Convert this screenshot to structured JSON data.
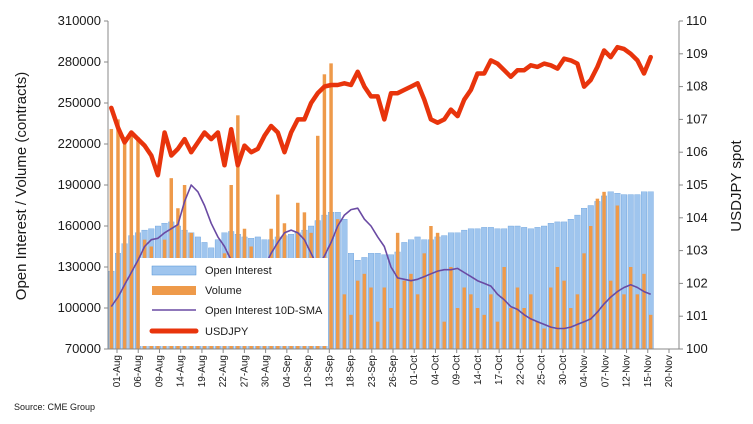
{
  "chart_data": {
    "type": "bar",
    "source": "Source: CME Group",
    "ylabel_left": "Open Interest / Volume (contracts)",
    "ylabel_right": "USDJPY spot",
    "ylim_left": [
      70000,
      310000
    ],
    "yticks_left": [
      "70000",
      "100000",
      "130000",
      "160000",
      "190000",
      "220000",
      "250000",
      "280000",
      "310000"
    ],
    "ylim_right": [
      100,
      110
    ],
    "yticks_right": [
      "100",
      "101",
      "102",
      "103",
      "104",
      "105",
      "106",
      "107",
      "108",
      "109",
      "110"
    ],
    "date_ticks": [
      "01-Aug",
      "06-Aug",
      "09-Aug",
      "14-Aug",
      "19-Aug",
      "22-Aug",
      "27-Aug",
      "30-Aug",
      "04-Sep",
      "10-Sep",
      "13-Sep",
      "18-Sep",
      "23-Sep",
      "26-Sep",
      "01-Oct",
      "04-Oct",
      "09-Oct",
      "14-Oct",
      "17-Oct",
      "22-Oct",
      "25-Oct",
      "30-Oct",
      "04-Nov",
      "07-Nov",
      "12-Nov",
      "15-Nov",
      "20-Nov"
    ],
    "colors": {
      "open_interest_fill": "#9fc5ee",
      "open_interest_stroke": "#4f8fd6",
      "volume": "#ee9a4a",
      "sma": "#6a4aa3",
      "usdjpy": "#e8340c"
    },
    "legend": [
      {
        "key": "open_interest",
        "label": "Open Interest"
      },
      {
        "key": "volume",
        "label": "Volume"
      },
      {
        "key": "sma",
        "label": "Open Interest 10D-SMA"
      },
      {
        "key": "usdjpy",
        "label": "USDJPY"
      }
    ],
    "series": [
      {
        "name": "Open Interest",
        "type": "bar",
        "axis": "left",
        "values": [
          127000,
          140000,
          147000,
          153000,
          155000,
          157000,
          158000,
          160000,
          162000,
          163000,
          160000,
          157000,
          155000,
          152000,
          148000,
          144000,
          150000,
          155000,
          156000,
          154000,
          152000,
          151000,
          152000,
          150000,
          150000,
          152000,
          153000,
          154000,
          155000,
          157000,
          160000,
          164000,
          168000,
          170000,
          170000,
          165000,
          140000,
          135000,
          137000,
          140000,
          140000,
          139000,
          139000,
          141000,
          148000,
          150000,
          152000,
          150000,
          150000,
          152000,
          153000,
          155000,
          155000,
          157000,
          158000,
          158000,
          159000,
          159000,
          158000,
          158000,
          160000,
          160000,
          159000,
          158000,
          159000,
          160000,
          162000,
          163000,
          163000,
          165000,
          168000,
          173000,
          175000,
          178000,
          182000,
          185000,
          184000,
          183000,
          183000,
          183000,
          185000,
          185000
        ]
      },
      {
        "name": "Volume",
        "type": "bar",
        "axis": "left",
        "values": [
          231000,
          238000,
          225000,
          226000,
          225000,
          150000,
          145000,
          120000,
          150000,
          195000,
          173000,
          190000,
          155000,
          130000,
          100000,
          100000,
          120000,
          140000,
          190000,
          241000,
          158000,
          145000,
          120000,
          100000,
          158000,
          183000,
          162000,
          120000,
          177000,
          170000,
          155000,
          226000,
          271000,
          279000,
          165000,
          110000,
          95000,
          120000,
          125000,
          115000,
          90000,
          115000,
          100000,
          155000,
          120000,
          125000,
          110000,
          140000,
          160000,
          155000,
          90000,
          130000,
          100000,
          115000,
          110000,
          100000,
          95000,
          110000,
          90000,
          130000,
          100000,
          115000,
          100000,
          110000,
          90000,
          85000,
          115000,
          130000,
          120000,
          100000,
          110000,
          140000,
          160000,
          180000,
          185000,
          120000,
          175000,
          110000,
          130000,
          110000,
          125000,
          95000
        ]
      },
      {
        "name": "Open Interest 10D-SMA",
        "type": "line",
        "axis": "left",
        "values": [
          101000,
          108000,
          117000,
          126000,
          135000,
          145000,
          150000,
          151000,
          155000,
          158000,
          161000,
          178000,
          190000,
          185000,
          175000,
          162000,
          152000,
          145000,
          135000,
          130000,
          128000,
          127000,
          126000,
          130000,
          140000,
          148000,
          155000,
          157000,
          155000,
          150000,
          140000,
          130000,
          138000,
          148000,
          160000,
          168000,
          172000,
          173000,
          165000,
          160000,
          152000,
          145000,
          130000,
          122000,
          121000,
          120000,
          121000,
          123000,
          125000,
          127000,
          128000,
          128000,
          129000,
          126000,
          123000,
          120000,
          118000,
          116000,
          110000,
          106000,
          101000,
          99000,
          95000,
          92000,
          90000,
          88000,
          86000,
          85000,
          85000,
          86000,
          88000,
          90000,
          92000,
          97000,
          103000,
          108000,
          112000,
          115000,
          117000,
          115000,
          112000,
          110000
        ]
      },
      {
        "name": "USDJPY",
        "type": "line",
        "axis": "right",
        "values": [
          107.35,
          106.75,
          106.3,
          106.6,
          106.4,
          106.2,
          105.9,
          105.3,
          106.6,
          105.9,
          106.1,
          106.4,
          106.0,
          106.3,
          106.6,
          106.4,
          106.6,
          105.6,
          106.7,
          105.6,
          106.2,
          106.0,
          106.1,
          106.5,
          106.8,
          106.6,
          106.0,
          106.6,
          107.0,
          107.0,
          107.5,
          107.8,
          108.0,
          108.05,
          108.05,
          108.1,
          108.05,
          108.45,
          108.0,
          107.7,
          107.7,
          107.0,
          107.8,
          107.8,
          107.9,
          108.0,
          108.1,
          107.6,
          107.0,
          106.9,
          107.0,
          107.3,
          107.1,
          107.6,
          107.9,
          108.4,
          108.4,
          108.8,
          108.7,
          108.5,
          108.3,
          108.5,
          108.5,
          108.65,
          108.6,
          108.7,
          108.65,
          108.55,
          108.85,
          108.8,
          108.7,
          108.0,
          108.2,
          108.6,
          109.1,
          108.9,
          109.2,
          109.15,
          109.0,
          108.8,
          108.4,
          108.9
        ]
      }
    ]
  }
}
